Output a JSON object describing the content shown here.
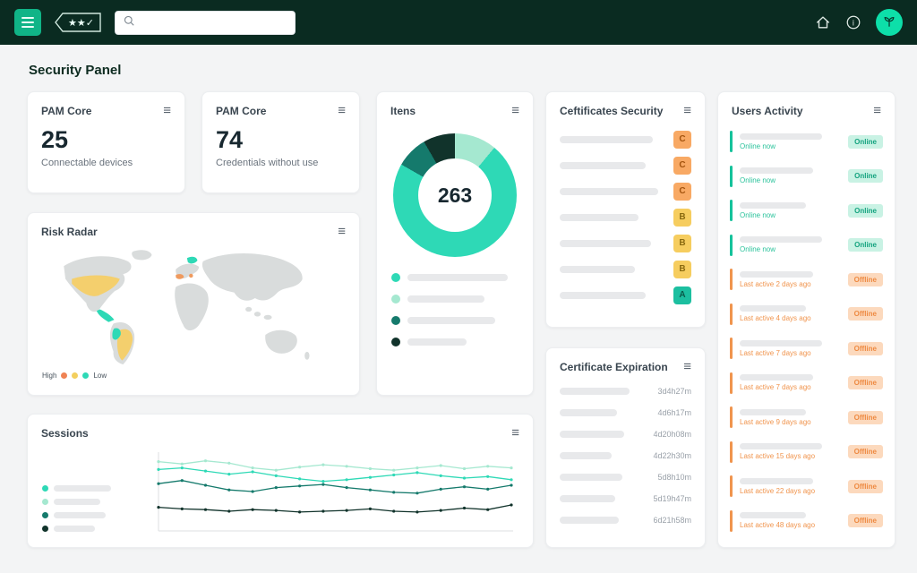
{
  "colors": {
    "navbar_bg": "#0a2b21",
    "accent_teal": "#10b487",
    "avatar_teal": "#0ddfa9",
    "status_high_orange": "#ef8354",
    "status_mid_yellow": "#f3cf5e",
    "status_low_teal": "#2ed9b6",
    "online_teal": "#15c29b",
    "offline_orange": "#f0944d"
  },
  "icons": {
    "menu_button": "hamburger",
    "card_menu": "≡",
    "search": "magnifier",
    "home": "house",
    "info": "i",
    "avatar": "sprout",
    "license_tag": "★★✓"
  },
  "navbar": {
    "search_placeholder": ""
  },
  "page": {
    "title": "Security Panel"
  },
  "pam_core_1": {
    "title": "PAM Core",
    "value": "25",
    "subtitle": "Connectable devices"
  },
  "pam_core_2": {
    "title": "PAM Core",
    "value": "74",
    "subtitle": "Credentials without use"
  },
  "itens": {
    "title": "Itens",
    "total": "263",
    "chart_data": {
      "type": "pie",
      "title": "Itens",
      "center_total": 263,
      "segments": [
        {
          "name": "segment-mint",
          "color": "#a5e8d0",
          "value": 29
        },
        {
          "name": "segment-teal",
          "color": "#2ed9b6",
          "value": 190
        },
        {
          "name": "segment-dark-teal",
          "color": "#157a6c",
          "value": 22
        },
        {
          "name": "segment-darkest",
          "color": "#11332b",
          "value": 22
        }
      ],
      "legend_colors": [
        "#2ed9b6",
        "#a5e8d0",
        "#157a6c",
        "#11332b"
      ]
    }
  },
  "certificates": {
    "title": "Ceftificates Security",
    "rows": [
      {
        "grade": "C"
      },
      {
        "grade": "C"
      },
      {
        "grade": "C"
      },
      {
        "grade": "B"
      },
      {
        "grade": "B"
      },
      {
        "grade": "B"
      },
      {
        "grade": "A"
      }
    ]
  },
  "expiration": {
    "title": "Certificate Expiration",
    "rows": [
      "3d4h27m",
      "4d6h17m",
      "4d20h08m",
      "4d22h30m",
      "5d8h10m",
      "5d19h47m",
      "6d21h58m"
    ]
  },
  "users": {
    "title": "Users Activity",
    "rows": [
      {
        "status": "Online now",
        "badge": "Online",
        "state": "online"
      },
      {
        "status": "Online now",
        "badge": "Online",
        "state": "online"
      },
      {
        "status": "Online now",
        "badge": "Online",
        "state": "online"
      },
      {
        "status": "Online now",
        "badge": "Online",
        "state": "online"
      },
      {
        "status": "Last active 2 days ago",
        "badge": "Offline",
        "state": "offline"
      },
      {
        "status": "Last active 4 days ago",
        "badge": "Offline",
        "state": "offline"
      },
      {
        "status": "Last active 7 days ago",
        "badge": "Offline",
        "state": "offline"
      },
      {
        "status": "Last active 7 days ago",
        "badge": "Offline",
        "state": "offline"
      },
      {
        "status": "Last active 9 days ago",
        "badge": "Offline",
        "state": "offline"
      },
      {
        "status": "Last active 15 days ago",
        "badge": "Offline",
        "state": "offline"
      },
      {
        "status": "Last active 22 days ago",
        "badge": "Offline",
        "state": "offline"
      },
      {
        "status": "Last active 48 days ago",
        "badge": "Offline",
        "state": "offline"
      }
    ]
  },
  "risk_radar": {
    "title": "Risk Radar",
    "legend_high": "High",
    "legend_low": "Low"
  },
  "sessions": {
    "title": "Sessions",
    "chart_data": {
      "type": "line",
      "x": [
        1,
        2,
        3,
        4,
        5,
        6,
        7,
        8,
        9,
        10,
        11,
        12,
        13,
        14,
        15,
        16
      ],
      "ylim": [
        0,
        100
      ],
      "grid": false,
      "legend_position": "left",
      "series": [
        {
          "name": "series-teal",
          "color": "#2ed9b6",
          "values": [
            78,
            80,
            76,
            72,
            75,
            70,
            66,
            63,
            65,
            68,
            71,
            74,
            70,
            67,
            69,
            65
          ]
        },
        {
          "name": "series-mint",
          "color": "#a5e8d0",
          "values": [
            88,
            85,
            89,
            86,
            80,
            77,
            81,
            84,
            82,
            79,
            77,
            80,
            83,
            79,
            82,
            80
          ]
        },
        {
          "name": "series-dark-teal",
          "color": "#157a6c",
          "values": [
            60,
            64,
            58,
            52,
            50,
            55,
            57,
            59,
            55,
            52,
            49,
            48,
            53,
            56,
            53,
            58
          ]
        },
        {
          "name": "series-darkest",
          "color": "#11332b",
          "values": [
            30,
            28,
            27,
            25,
            27,
            26,
            24,
            25,
            26,
            28,
            25,
            24,
            26,
            29,
            27,
            33
          ]
        }
      ]
    }
  }
}
